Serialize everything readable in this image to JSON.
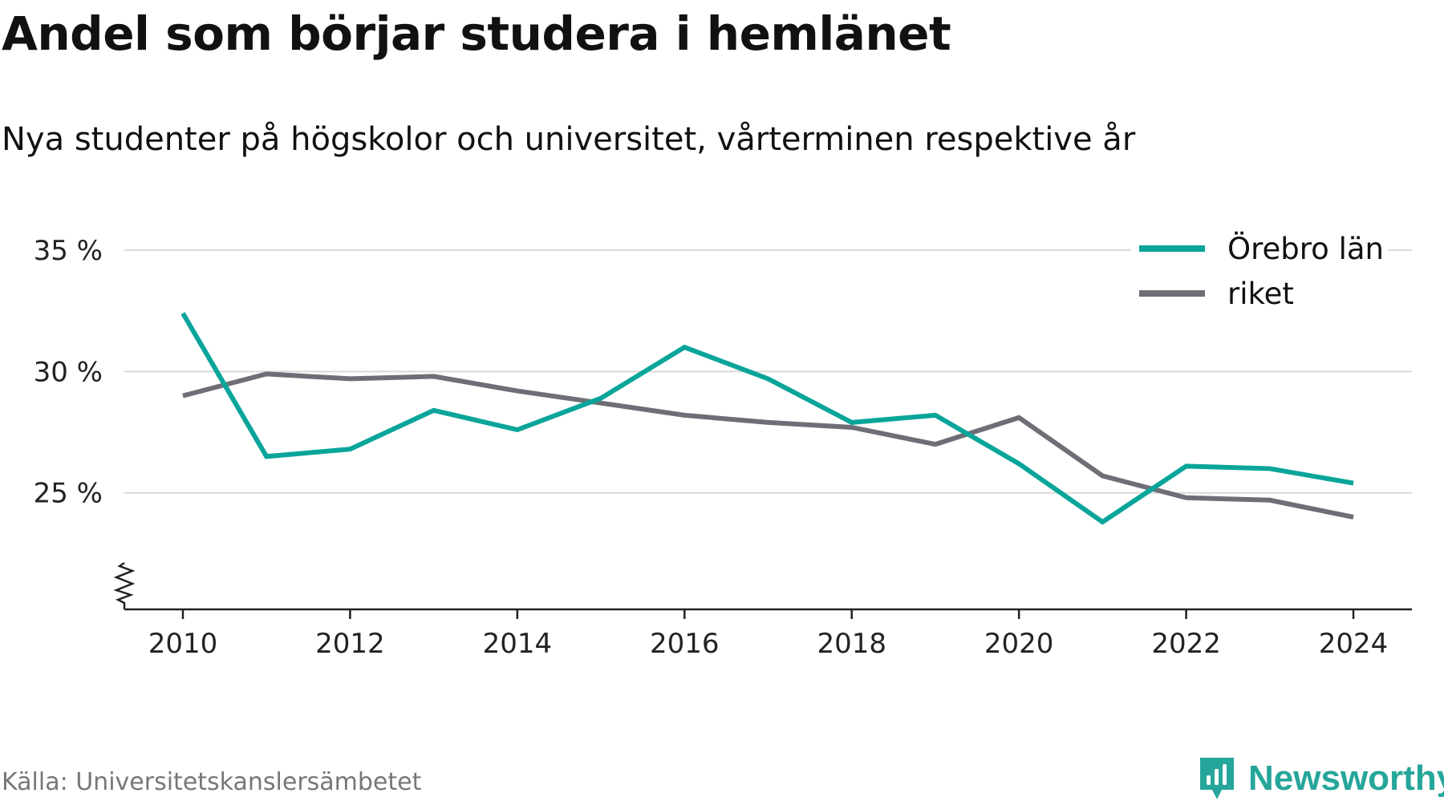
{
  "title": "Andel som börjar studera i hemlänet",
  "subtitle": "Nya studenter på högskolor och universitet, vårterminen respektive år",
  "source": "Källa: Universitetskanslersämbetet",
  "brand": {
    "name": "Newsworthy",
    "icon": "bar-chart-icon",
    "color": "#26a69a"
  },
  "chart_data": {
    "type": "line",
    "x": [
      2010,
      2011,
      2012,
      2013,
      2014,
      2015,
      2016,
      2017,
      2018,
      2019,
      2020,
      2021,
      2022,
      2023,
      2024
    ],
    "x_ticks": [
      2010,
      2012,
      2014,
      2016,
      2018,
      2020,
      2022,
      2024
    ],
    "x_tick_labels": [
      "2010",
      "2012",
      "2014",
      "2016",
      "2018",
      "2020",
      "2022",
      "2024"
    ],
    "y_ticks": [
      25,
      30,
      35
    ],
    "y_tick_labels": [
      "25 %",
      "30 %",
      "35 %"
    ],
    "xlim": [
      2009.3,
      2024.7
    ],
    "ylim": [
      20.2,
      35
    ],
    "axis_break": true,
    "grid": true,
    "legend_position": "top-right",
    "series": [
      {
        "name": "Örebro län",
        "color": "#0aa59a",
        "values": [
          32.4,
          26.5,
          26.8,
          28.4,
          27.6,
          28.9,
          31.0,
          29.7,
          27.9,
          28.2,
          26.2,
          23.8,
          26.1,
          26.0,
          25.4
        ]
      },
      {
        "name": "riket",
        "color": "#6f6e76",
        "values": [
          29.0,
          29.9,
          29.7,
          29.8,
          29.2,
          28.7,
          28.2,
          27.9,
          27.7,
          27.0,
          28.1,
          25.7,
          24.8,
          24.7,
          24.0
        ]
      }
    ]
  }
}
